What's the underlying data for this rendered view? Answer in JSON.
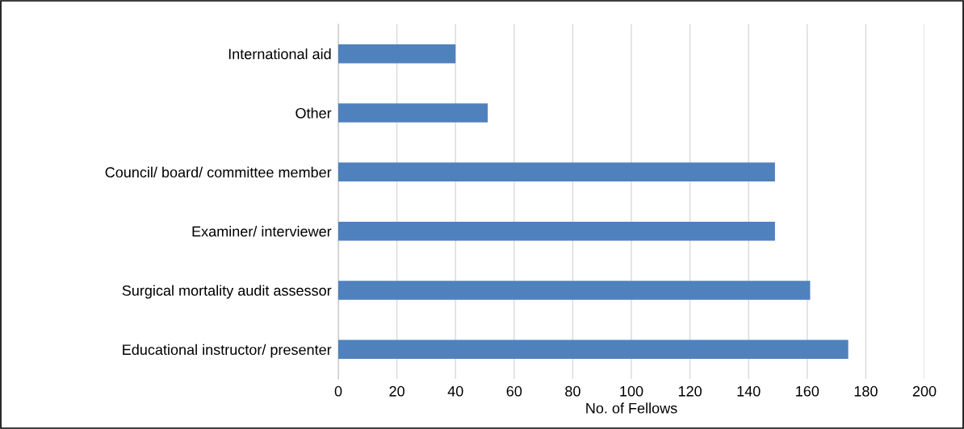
{
  "chart_data": {
    "type": "bar",
    "orientation": "horizontal",
    "xlabel": "No. of Fellows",
    "categories": [
      "International aid",
      "Other",
      "Council/ board/ committee member",
      "Examiner/ interviewer",
      "Surgical mortality audit assessor",
      "Educational instructor/ presenter"
    ],
    "values": [
      40,
      51,
      149,
      149,
      161,
      174
    ],
    "color": "#4f81bd",
    "xlim": [
      0,
      200
    ],
    "xticks": [
      0,
      20,
      40,
      60,
      80,
      100,
      120,
      140,
      160,
      180,
      200
    ],
    "grid": "x"
  }
}
